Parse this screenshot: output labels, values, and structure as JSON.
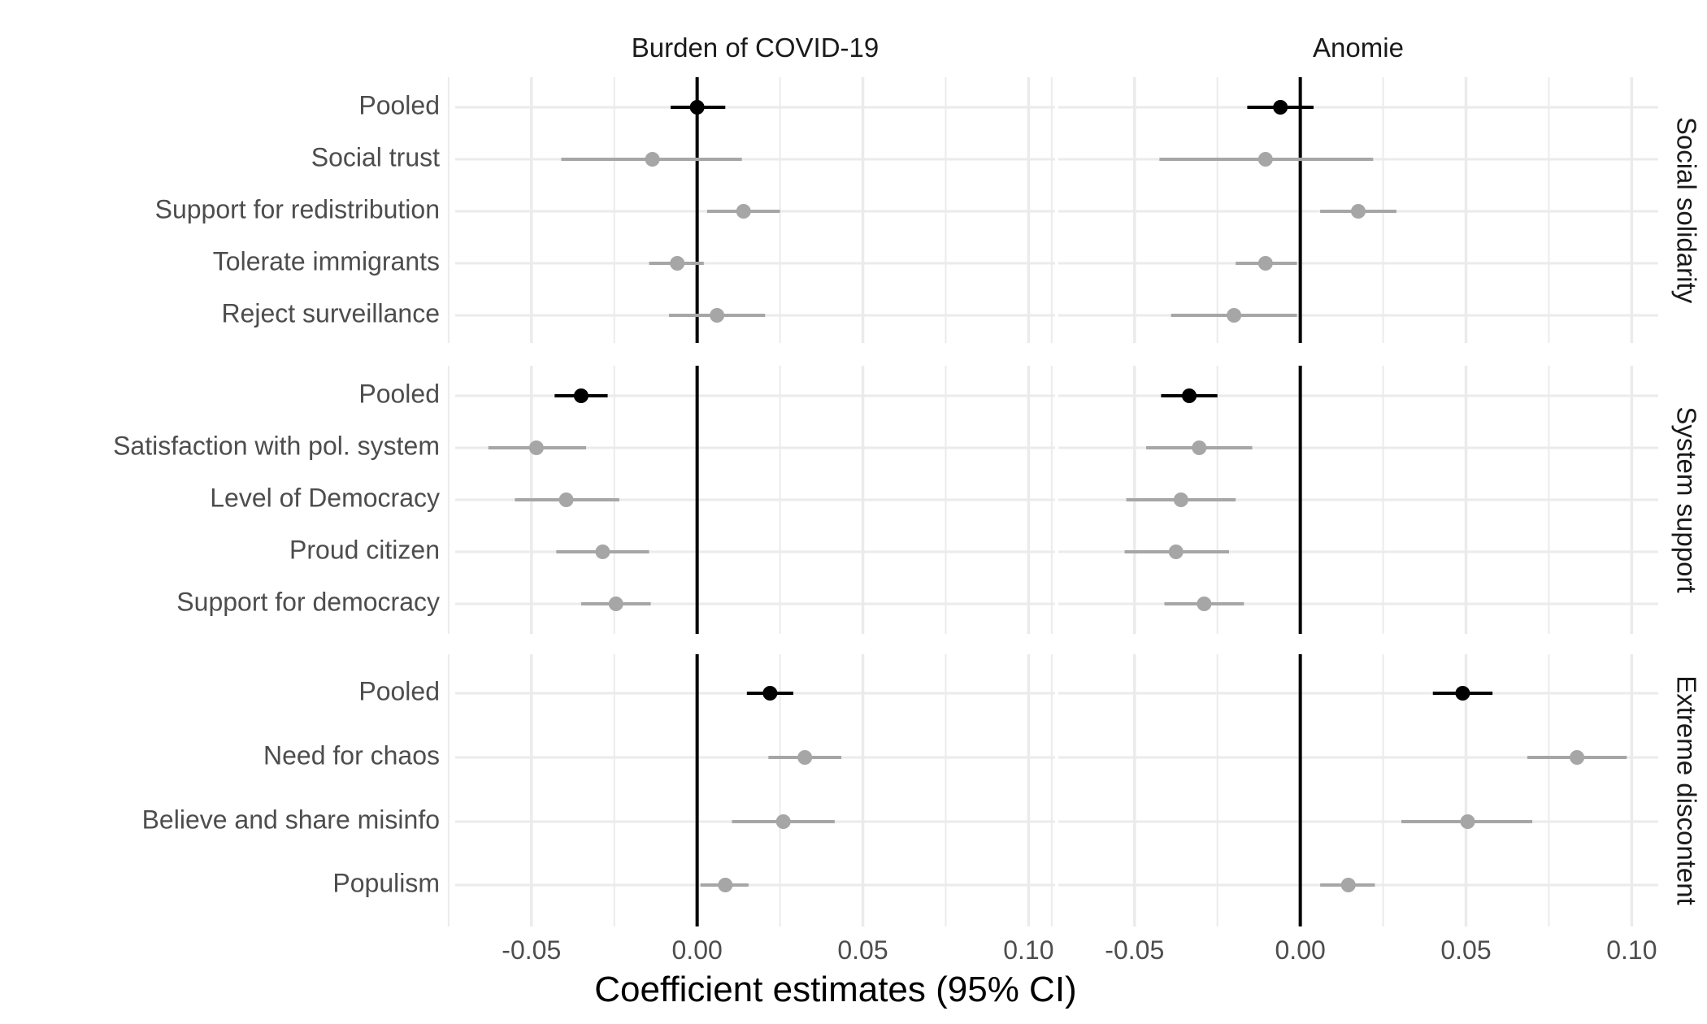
{
  "chart_data": {
    "type": "scatter",
    "subtype": "coefficient-plot-with-95pct-ci",
    "xlabel": "Coefficient estimates (95% CI)",
    "columns": [
      "Burden of COVID-19",
      "Anomie"
    ],
    "x_ticks": [
      "-0.05",
      "0.00",
      "0.05",
      "0.10"
    ],
    "x_tick_values": [
      -0.05,
      0.0,
      0.05,
      0.1
    ],
    "xlim": [
      -0.073,
      0.108
    ],
    "grid": true,
    "zero_line": true,
    "colors": {
      "pooled": "#000000",
      "item": "#a6a6a6",
      "grid": "#ebebeb"
    },
    "rows": [
      {
        "name": "Social solidarity",
        "categories": [
          "Pooled",
          "Social trust",
          "Support for redistribution",
          "Tolerate immigrants",
          "Reject surveillance"
        ],
        "series": [
          {
            "name": "Burden of COVID-19",
            "estimates": [
              0.0,
              -0.0135,
              0.014,
              -0.006,
              0.006
            ],
            "lower": [
              -0.008,
              -0.041,
              0.003,
              -0.0145,
              -0.0085
            ],
            "upper": [
              0.0085,
              0.0135,
              0.025,
              0.002,
              0.0205
            ]
          },
          {
            "name": "Anomie",
            "estimates": [
              -0.006,
              -0.0105,
              0.0175,
              -0.0105,
              -0.02
            ],
            "lower": [
              -0.016,
              -0.0425,
              0.006,
              -0.0195,
              -0.039
            ],
            "upper": [
              0.004,
              0.022,
              0.029,
              -0.001,
              -0.001
            ]
          }
        ]
      },
      {
        "name": "System support",
        "categories": [
          "Pooled",
          "Satisfaction with pol. system",
          "Level of Democracy",
          "Proud citizen",
          "Support for democracy"
        ],
        "series": [
          {
            "name": "Burden of COVID-19",
            "estimates": [
              -0.035,
              -0.0485,
              -0.0395,
              -0.0285,
              -0.0245
            ],
            "lower": [
              -0.043,
              -0.063,
              -0.055,
              -0.0425,
              -0.035
            ],
            "upper": [
              -0.027,
              -0.0335,
              -0.0235,
              -0.0145,
              -0.014
            ]
          },
          {
            "name": "Anomie",
            "estimates": [
              -0.0335,
              -0.0305,
              -0.036,
              -0.0375,
              -0.029
            ],
            "lower": [
              -0.042,
              -0.0465,
              -0.0525,
              -0.053,
              -0.041
            ],
            "upper": [
              -0.025,
              -0.0145,
              -0.0195,
              -0.0215,
              -0.017
            ]
          }
        ]
      },
      {
        "name": "Extreme discontent",
        "categories": [
          "Pooled",
          "Need for chaos",
          "Believe and share misinfo",
          "Populism"
        ],
        "series": [
          {
            "name": "Burden of COVID-19",
            "estimates": [
              0.022,
              0.0325,
              0.026,
              0.0085
            ],
            "lower": [
              0.015,
              0.0215,
              0.0105,
              0.001
            ],
            "upper": [
              0.029,
              0.0435,
              0.0415,
              0.0155
            ]
          },
          {
            "name": "Anomie",
            "estimates": [
              0.049,
              0.0835,
              0.0505,
              0.0145
            ],
            "lower": [
              0.04,
              0.0685,
              0.0305,
              0.006
            ],
            "upper": [
              0.058,
              0.0985,
              0.07,
              0.0225
            ]
          }
        ]
      }
    ]
  }
}
